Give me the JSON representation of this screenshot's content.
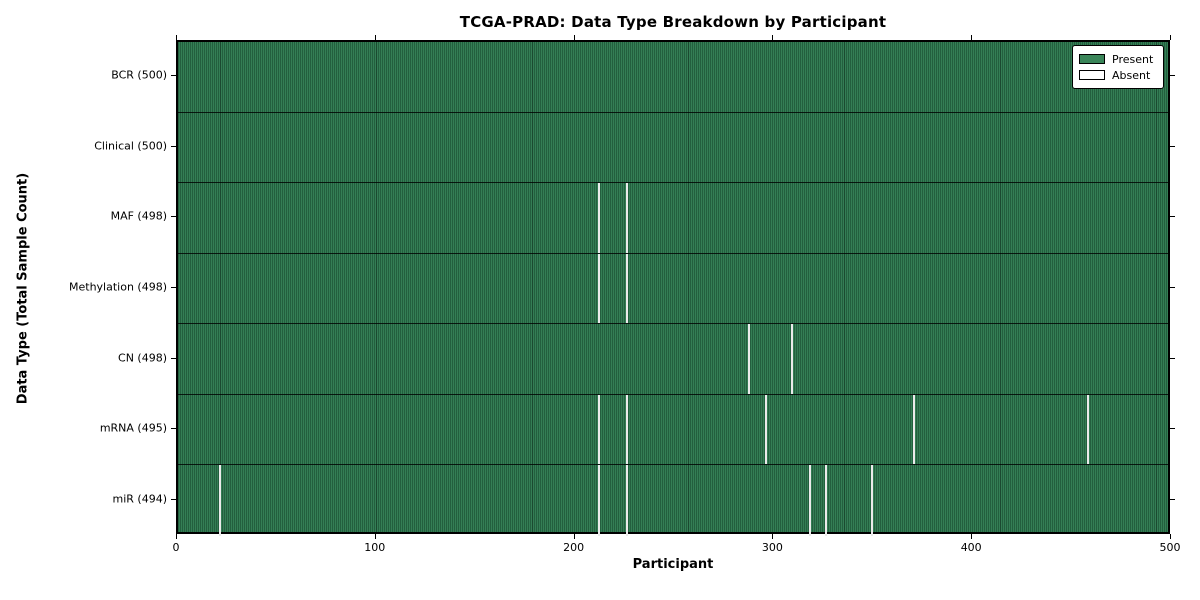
{
  "chart_data": {
    "type": "heatmap",
    "title": "TCGA-PRAD: Data Type Breakdown by Participant",
    "xlabel": "Participant",
    "ylabel": "Data Type (Total Sample Count)",
    "xlim": [
      0,
      500
    ],
    "x_ticks": [
      0,
      100,
      200,
      300,
      400,
      500
    ],
    "n_participants": 500,
    "grid": false,
    "legend": {
      "position": "upper right",
      "present_label": "Present",
      "absent_label": "Absent"
    },
    "colors": {
      "present": "#347e55",
      "present_edge": "#235f3e",
      "absent": "#ebebeb",
      "spine": "#000000",
      "legend_present_swatch": "#3a8559",
      "legend_absent_swatch": "#ffffff"
    },
    "rows": [
      {
        "label": "BCR",
        "total": 500,
        "absent_participants": []
      },
      {
        "label": "Clinical",
        "total": 500,
        "absent_participants": []
      },
      {
        "label": "MAF",
        "total": 498,
        "absent_participants": [
          213,
          227
        ]
      },
      {
        "label": "Methylation",
        "total": 498,
        "absent_participants": [
          213,
          227
        ]
      },
      {
        "label": "CN",
        "total": 498,
        "absent_participants": [
          288,
          310
        ]
      },
      {
        "label": "mRNA",
        "total": 495,
        "absent_participants": [
          213,
          227,
          297,
          371,
          459
        ]
      },
      {
        "label": "miR",
        "total": 494,
        "absent_participants": [
          22,
          213,
          227,
          319,
          327,
          350
        ]
      }
    ]
  }
}
